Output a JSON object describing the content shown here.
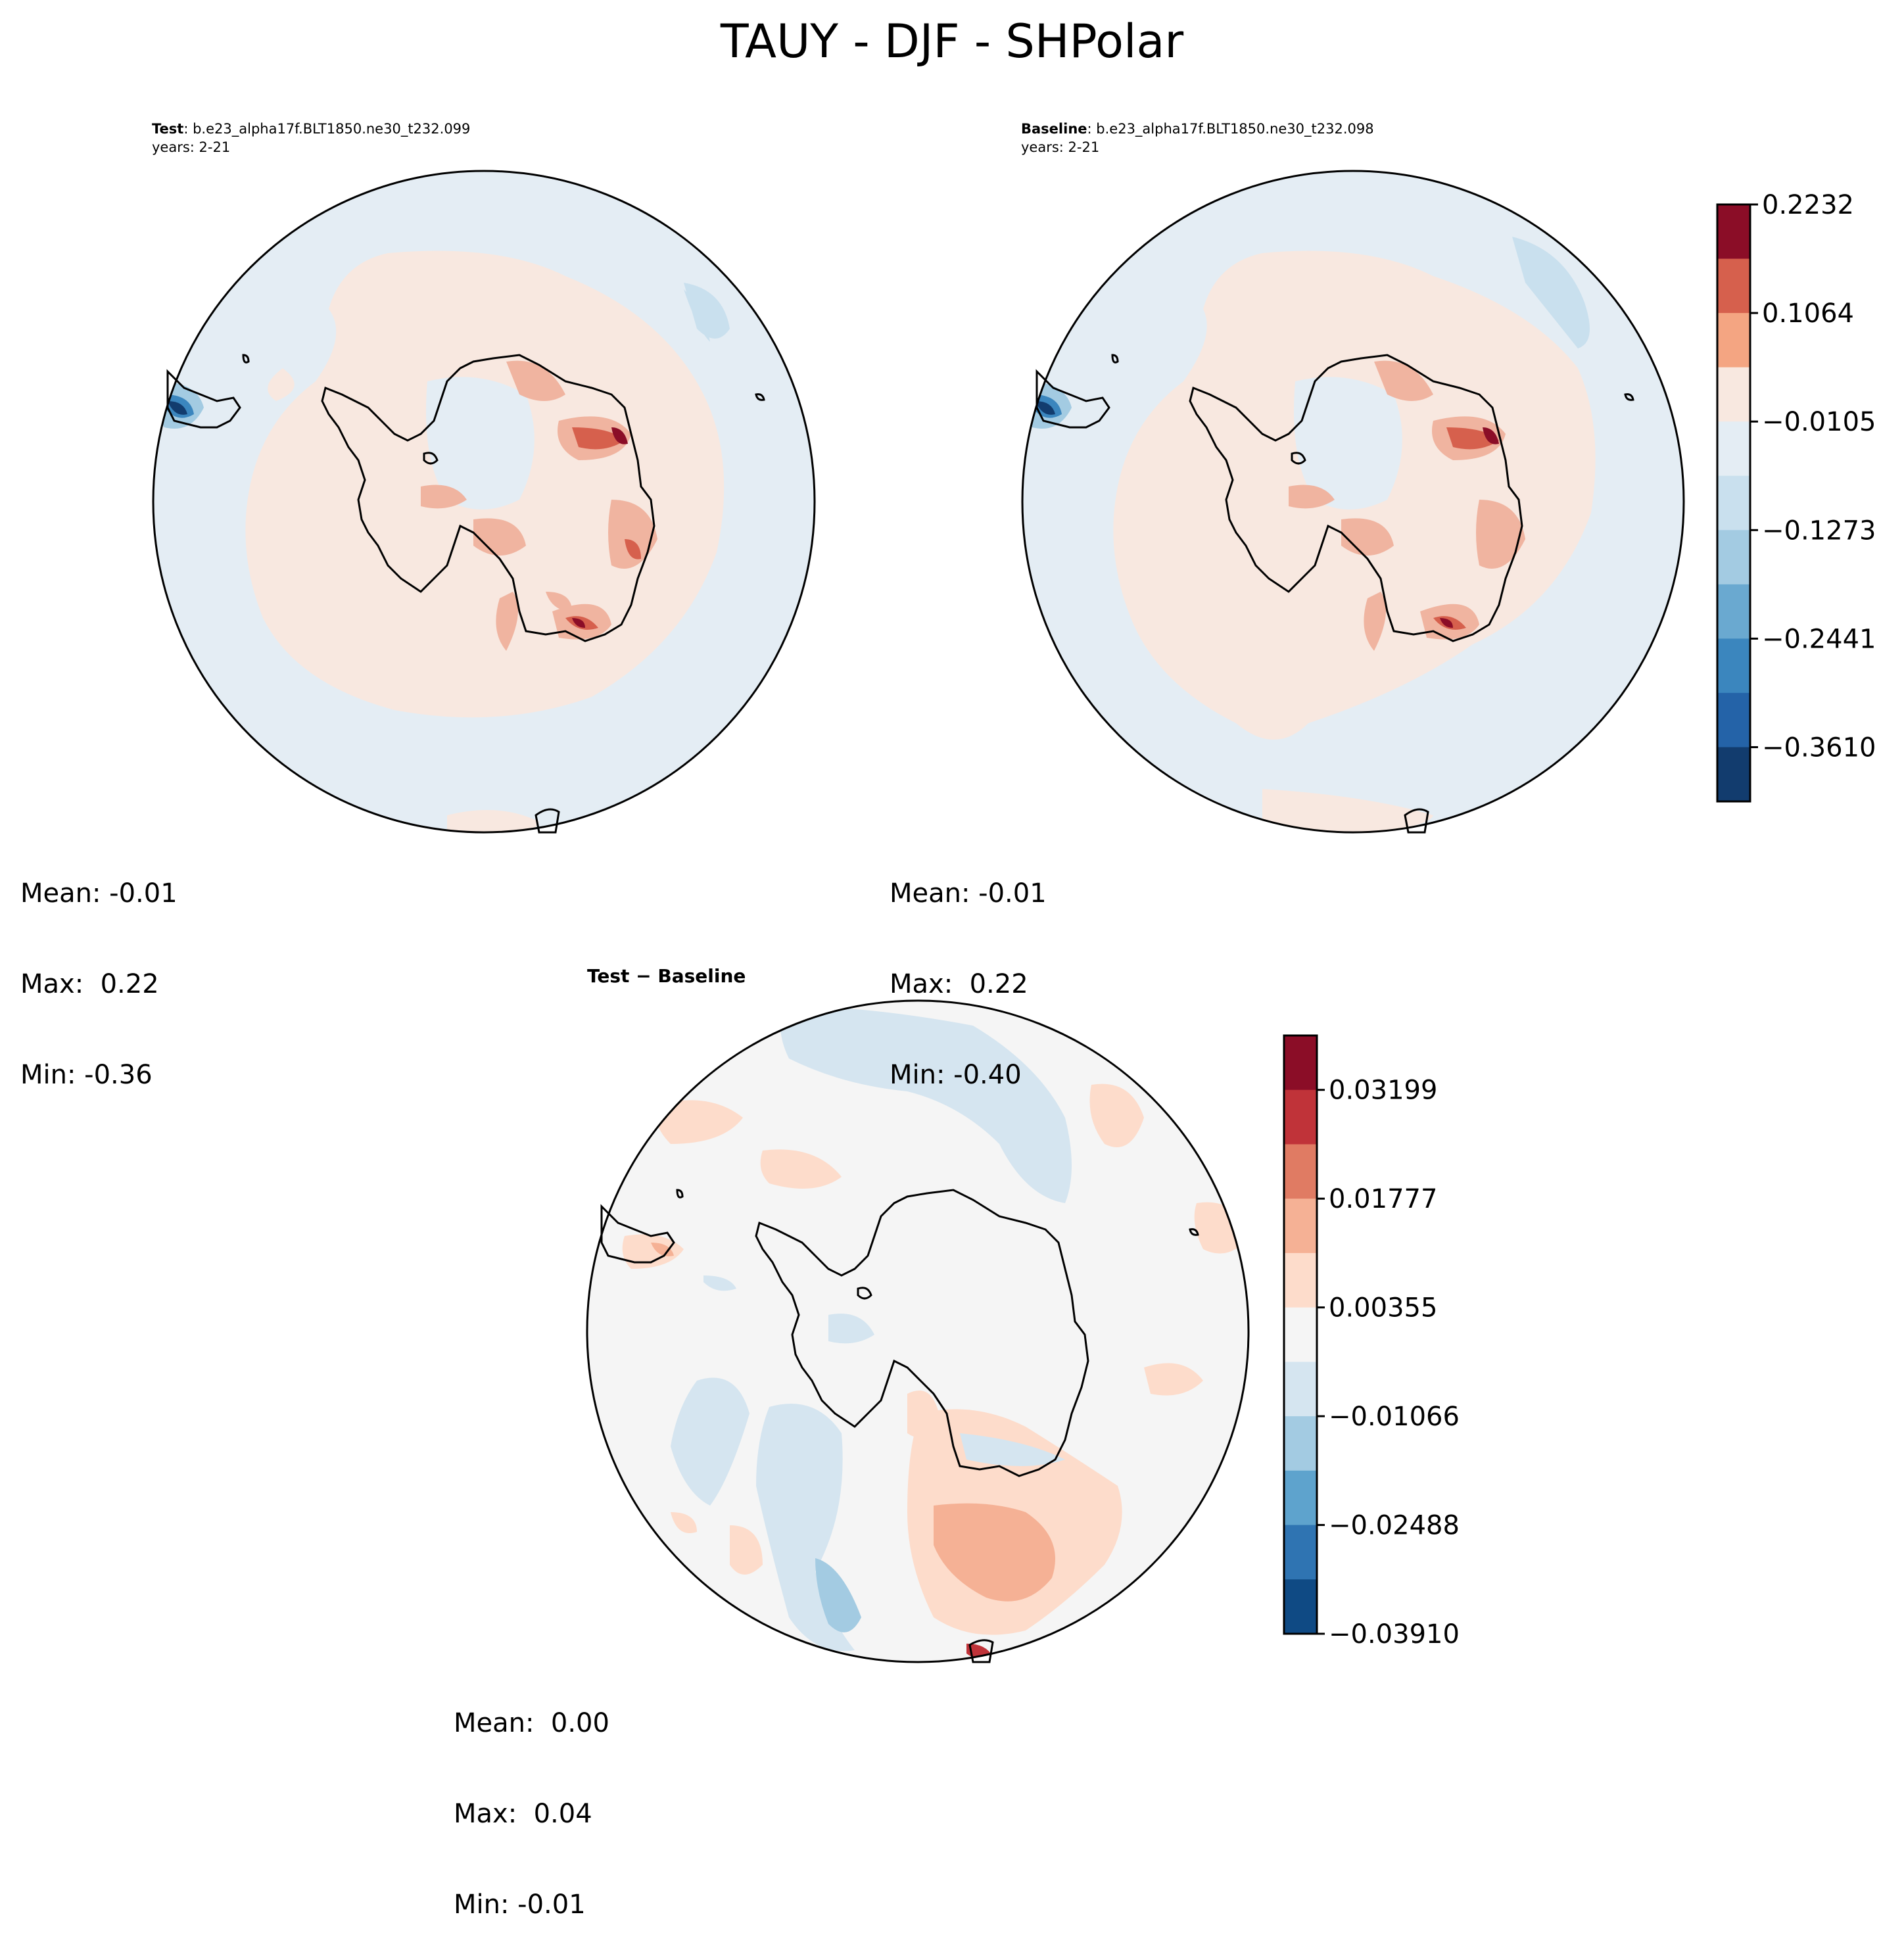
{
  "title": "TAUY - DJF - SHPolar",
  "panels": {
    "test": {
      "label": "Test",
      "case": "b.e23_alpha17f.BLT1850.ne30_t232.099",
      "years": "years: 2-21",
      "stats": {
        "mean": "Mean: -0.01",
        "max": "Max:  0.22",
        "min": "Min: -0.36"
      }
    },
    "baseline": {
      "label": "Baseline",
      "case": "b.e23_alpha17f.BLT1850.ne30_t232.098",
      "years": "years: 2-21",
      "stats": {
        "mean": "Mean: -0.01",
        "max": "Max:  0.22",
        "min": "Min: -0.40"
      }
    },
    "diff": {
      "title": "Test − Baseline",
      "stats": {
        "mean": "Mean:  0.00",
        "max": "Max:  0.04",
        "min": "Min: -0.01"
      }
    }
  },
  "colorbars": {
    "main": {
      "ticks": [
        "0.2232",
        "0.1064",
        "−0.0105",
        "−0.1273",
        "−0.2441",
        "−0.3610"
      ],
      "colors": [
        "#8b0d27",
        "#d6604d",
        "#f4a582",
        "#f8e8e0",
        "#e4edf4",
        "#c9e0ee",
        "#a3cbe2",
        "#6aa9d0",
        "#3b86be",
        "#2463a8",
        "#123c6e"
      ]
    },
    "diff": {
      "ticks": [
        "0.03199",
        "0.01777",
        "0.00355",
        "−0.01066",
        "−0.02488",
        "−0.03910"
      ],
      "colors": [
        "#8b0d27",
        "#c03339",
        "#e07b63",
        "#f5b195",
        "#fddccb",
        "#f5f5f5",
        "#d5e5f0",
        "#a3cbe2",
        "#5ea3cd",
        "#2f74b2",
        "#0f4a84"
      ]
    }
  },
  "palette": {
    "ocean_blue": "#e4edf4",
    "pale_red": "#f8e8e0",
    "mid_red": "#f0b4a0",
    "dark_red": "#9e1a2e",
    "diff_bg": "#f5f5f5",
    "diff_blue": "#d5e5f0",
    "diff_pink": "#fddccb",
    "diff_salmon": "#f5b195",
    "coast": "#000000"
  }
}
